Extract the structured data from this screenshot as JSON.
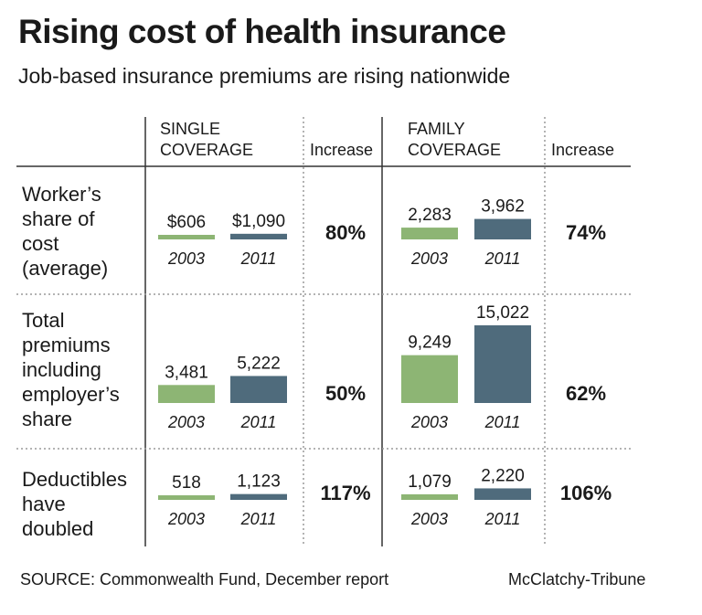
{
  "title": "Rising cost of health insurance",
  "subtitle": "Job-based insurance premiums are rising nationwide",
  "source": "SOURCE: Commonwealth Fund, December report",
  "credit": "McClatchy-Tribune",
  "colors": {
    "y2003": "#8db574",
    "y2011": "#4f6b7c",
    "rule": "#333333",
    "dotted": "#9a9a9a"
  },
  "chart_data": {
    "type": "bar",
    "columns": {
      "single_header": [
        "SINGLE",
        "COVERAGE"
      ],
      "single_increase": "Increase",
      "family_header": [
        "FAMILY",
        "COVERAGE"
      ],
      "family_increase": "Increase"
    },
    "rows": [
      {
        "label_lines": [
          "Worker’s",
          "share of",
          "cost",
          "(average)"
        ],
        "single": {
          "v2003": 606,
          "v2011": 1090,
          "l2003": "$606",
          "l2011": "$1,090",
          "y2003": "2003",
          "y2011": "2011",
          "increase": "80%"
        },
        "family": {
          "v2003": 2283,
          "v2011": 3962,
          "l2003": "2,283",
          "l2011": "3,962",
          "y2003": "2003",
          "y2011": "2011",
          "increase": "74%"
        }
      },
      {
        "label_lines": [
          "Total",
          "premiums",
          "including",
          "employer’s",
          "share"
        ],
        "single": {
          "v2003": 3481,
          "v2011": 5222,
          "l2003": "3,481",
          "l2011": "5,222",
          "y2003": "2003",
          "y2011": "2011",
          "increase": "50%"
        },
        "family": {
          "v2003": 9249,
          "v2011": 15022,
          "l2003": "9,249",
          "l2011": "15,022",
          "y2003": "2003",
          "y2011": "2011",
          "increase": "62%"
        }
      },
      {
        "label_lines": [
          "Deductibles",
          "have",
          "doubled"
        ],
        "single": {
          "v2003": 518,
          "v2011": 1123,
          "l2003": "518",
          "l2011": "1,123",
          "y2003": "2003",
          "y2011": "2011",
          "increase": "117%"
        },
        "family": {
          "v2003": 1079,
          "v2011": 2220,
          "l2003": "1,079",
          "l2011": "2,220",
          "y2003": "2003",
          "y2011": "2011",
          "increase": "106%"
        }
      }
    ]
  }
}
